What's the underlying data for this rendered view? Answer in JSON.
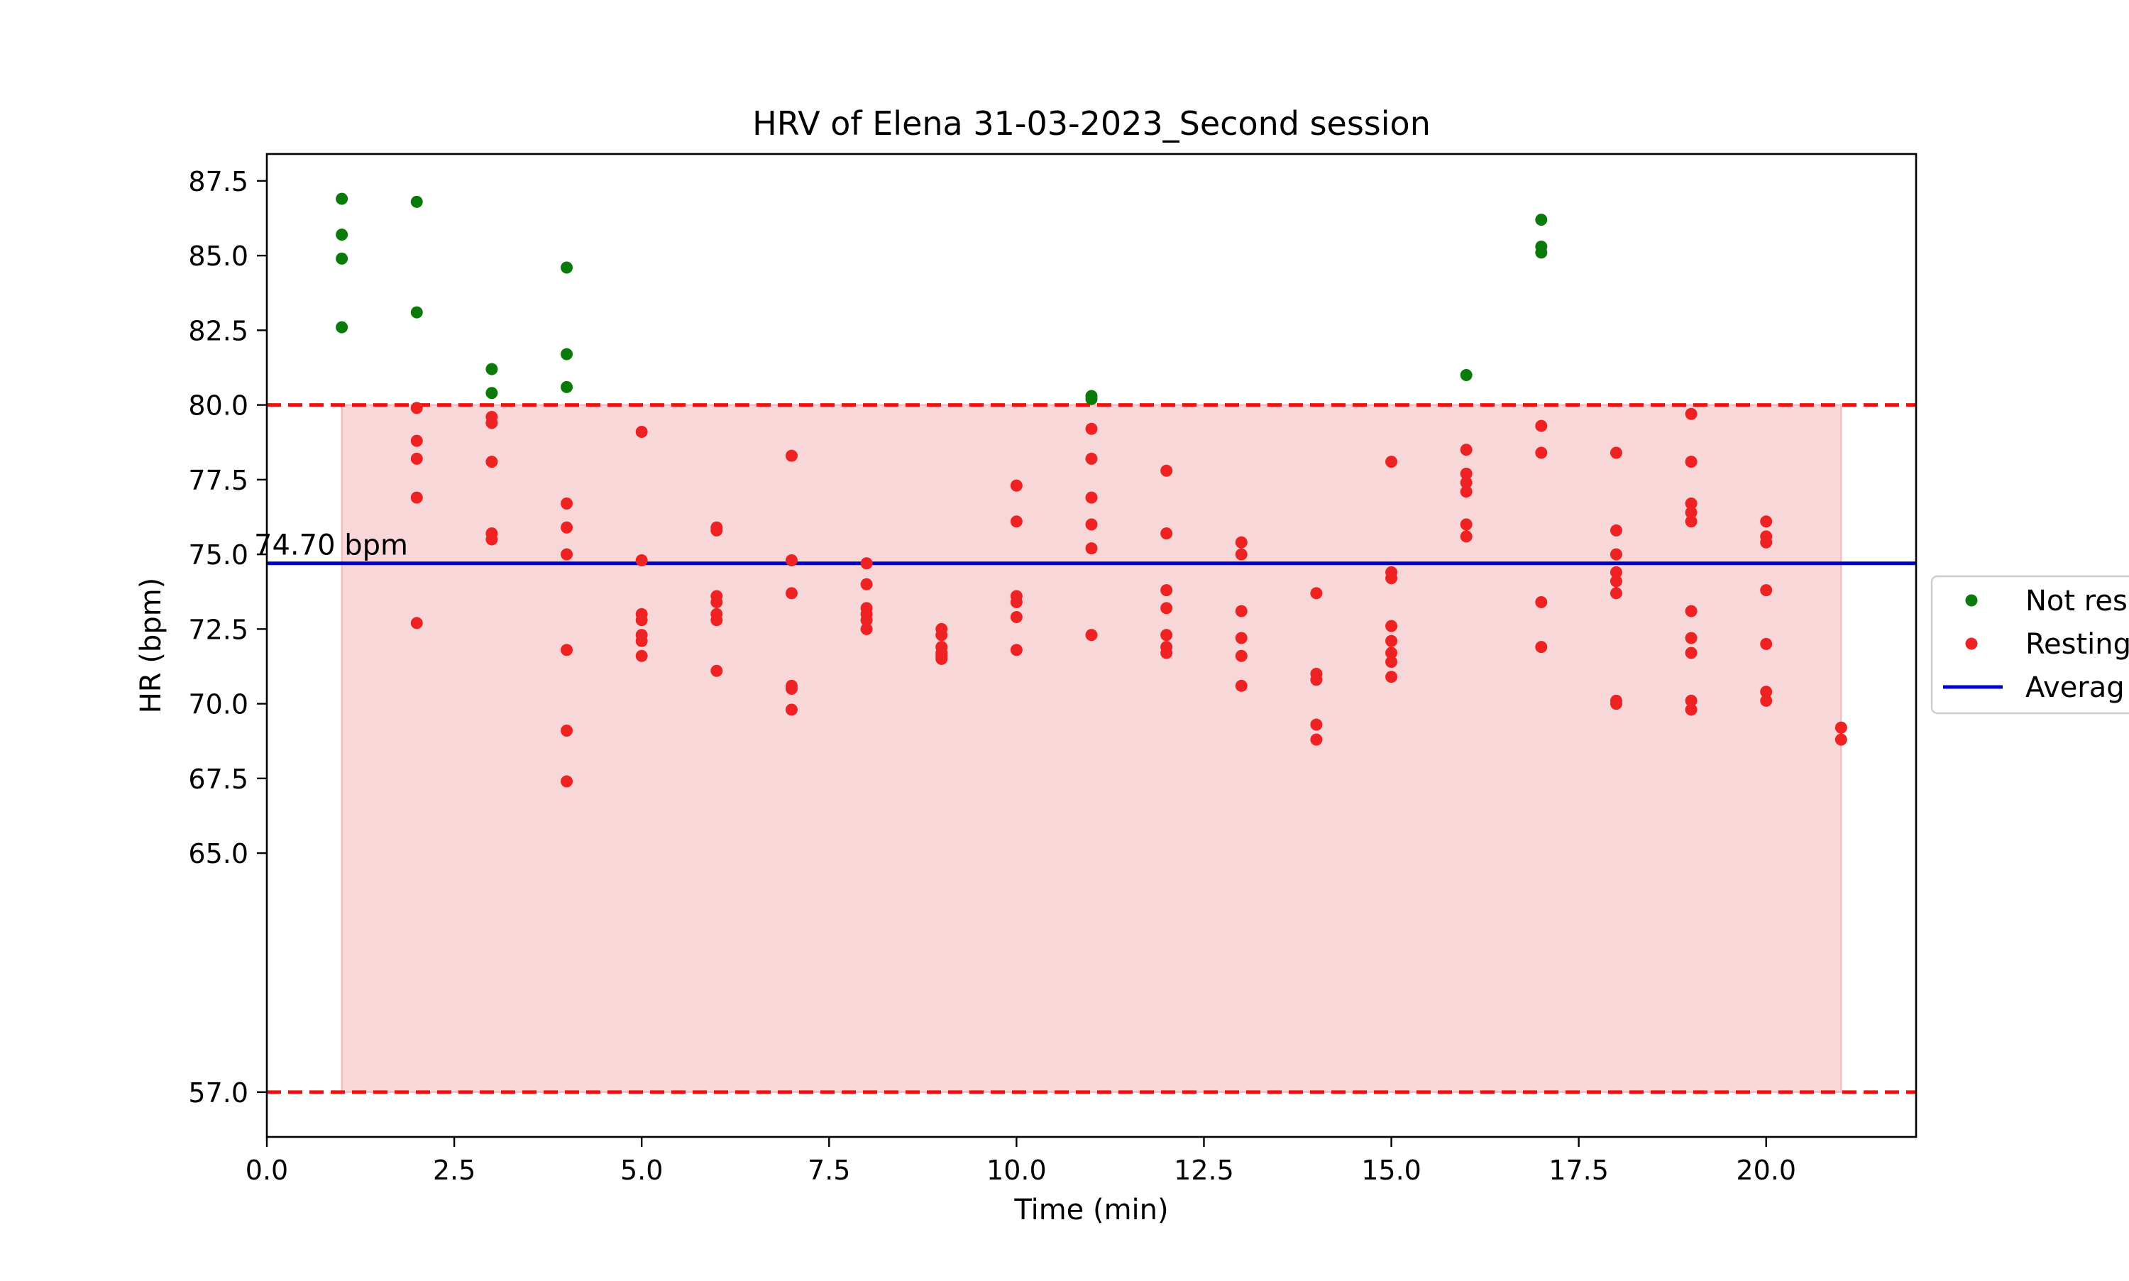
{
  "chart_data": {
    "type": "scatter",
    "title": "HRV of Elena 31-03-2023_Second session",
    "xlabel": "Time (min)",
    "ylabel": "HR (bpm)",
    "xlim": [
      0,
      22
    ],
    "ylim": [
      55.5,
      88.4
    ],
    "xticks": [
      0.0,
      2.5,
      5.0,
      7.5,
      10.0,
      12.5,
      15.0,
      17.5,
      20.0
    ],
    "xtick_labels": [
      "0.0",
      "2.5",
      "5.0",
      "7.5",
      "10.0",
      "12.5",
      "15.0",
      "17.5",
      "20.0"
    ],
    "yticks": [
      57.0,
      65.0,
      67.5,
      70.0,
      72.5,
      75.0,
      77.5,
      80.0,
      82.5,
      85.0,
      87.5
    ],
    "ytick_labels": [
      "57.0",
      "65.0",
      "67.5",
      "70.0",
      "72.5",
      "75.0",
      "77.5",
      "80.0",
      "82.5",
      "85.0",
      "87.5"
    ],
    "grid": false,
    "legend_placement": "right",
    "average": {
      "value": 74.7,
      "label": "74.70 bpm",
      "color": "#0000cc"
    },
    "resting_band": {
      "lower": 57.0,
      "upper": 80.0,
      "x_range": [
        1,
        21
      ],
      "line_color": "#ee1111",
      "fill_color": "#f8d7d8"
    },
    "series": [
      {
        "name": "Not resting",
        "legend_label": "Not res",
        "color": "#0a7a0a",
        "points": [
          [
            1,
            86.9
          ],
          [
            1,
            85.7
          ],
          [
            1,
            84.9
          ],
          [
            1,
            82.6
          ],
          [
            2,
            86.8
          ],
          [
            2,
            83.1
          ],
          [
            3,
            81.2
          ],
          [
            3,
            80.4
          ],
          [
            4,
            84.6
          ],
          [
            4,
            81.7
          ],
          [
            4,
            80.6
          ],
          [
            11,
            80.3
          ],
          [
            11,
            80.2
          ],
          [
            16,
            81.0
          ],
          [
            17,
            86.2
          ],
          [
            17,
            85.3
          ],
          [
            17,
            85.1
          ]
        ]
      },
      {
        "name": "Resting",
        "legend_label": "Resting",
        "color": "#ee2222",
        "points": [
          [
            2,
            79.9
          ],
          [
            2,
            78.8
          ],
          [
            2,
            78.2
          ],
          [
            2,
            76.9
          ],
          [
            2,
            72.7
          ],
          [
            3,
            79.6
          ],
          [
            3,
            79.4
          ],
          [
            3,
            78.1
          ],
          [
            3,
            75.7
          ],
          [
            3,
            75.5
          ],
          [
            4,
            76.7
          ],
          [
            4,
            75.9
          ],
          [
            4,
            75.0
          ],
          [
            4,
            71.8
          ],
          [
            4,
            69.1
          ],
          [
            4,
            67.4
          ],
          [
            5,
            79.1
          ],
          [
            5,
            74.8
          ],
          [
            5,
            73.0
          ],
          [
            5,
            72.8
          ],
          [
            5,
            72.3
          ],
          [
            5,
            72.1
          ],
          [
            5,
            71.6
          ],
          [
            6,
            75.9
          ],
          [
            6,
            75.8
          ],
          [
            6,
            73.6
          ],
          [
            6,
            73.4
          ],
          [
            6,
            73.0
          ],
          [
            6,
            72.8
          ],
          [
            6,
            71.1
          ],
          [
            7,
            78.3
          ],
          [
            7,
            74.8
          ],
          [
            7,
            73.7
          ],
          [
            7,
            70.6
          ],
          [
            7,
            70.5
          ],
          [
            7,
            69.8
          ],
          [
            8,
            74.7
          ],
          [
            8,
            74.0
          ],
          [
            8,
            73.2
          ],
          [
            8,
            73.0
          ],
          [
            8,
            72.8
          ],
          [
            8,
            72.5
          ],
          [
            9,
            72.5
          ],
          [
            9,
            72.3
          ],
          [
            9,
            71.9
          ],
          [
            9,
            71.7
          ],
          [
            9,
            71.6
          ],
          [
            9,
            71.5
          ],
          [
            10,
            77.3
          ],
          [
            10,
            76.1
          ],
          [
            10,
            73.6
          ],
          [
            10,
            73.4
          ],
          [
            10,
            72.9
          ],
          [
            10,
            71.8
          ],
          [
            11,
            79.2
          ],
          [
            11,
            78.2
          ],
          [
            11,
            76.9
          ],
          [
            11,
            76.0
          ],
          [
            11,
            75.2
          ],
          [
            11,
            72.3
          ],
          [
            12,
            77.8
          ],
          [
            12,
            75.7
          ],
          [
            12,
            73.8
          ],
          [
            12,
            73.2
          ],
          [
            12,
            72.3
          ],
          [
            12,
            71.9
          ],
          [
            12,
            71.7
          ],
          [
            13,
            75.4
          ],
          [
            13,
            75.0
          ],
          [
            13,
            73.1
          ],
          [
            13,
            72.2
          ],
          [
            13,
            71.6
          ],
          [
            13,
            70.6
          ],
          [
            14,
            73.7
          ],
          [
            14,
            71.0
          ],
          [
            14,
            70.8
          ],
          [
            14,
            69.3
          ],
          [
            14,
            68.8
          ],
          [
            15,
            78.1
          ],
          [
            15,
            74.4
          ],
          [
            15,
            74.2
          ],
          [
            15,
            72.6
          ],
          [
            15,
            72.1
          ],
          [
            15,
            71.7
          ],
          [
            15,
            71.4
          ],
          [
            15,
            70.9
          ],
          [
            16,
            78.5
          ],
          [
            16,
            77.7
          ],
          [
            16,
            77.4
          ],
          [
            16,
            77.1
          ],
          [
            16,
            76.0
          ],
          [
            16,
            75.6
          ],
          [
            17,
            79.3
          ],
          [
            17,
            78.4
          ],
          [
            17,
            73.4
          ],
          [
            17,
            71.9
          ],
          [
            18,
            78.4
          ],
          [
            18,
            75.8
          ],
          [
            18,
            75.0
          ],
          [
            18,
            74.4
          ],
          [
            18,
            74.1
          ],
          [
            18,
            73.7
          ],
          [
            18,
            70.1
          ],
          [
            18,
            70.0
          ],
          [
            19,
            79.7
          ],
          [
            19,
            78.1
          ],
          [
            19,
            76.7
          ],
          [
            19,
            76.4
          ],
          [
            19,
            76.1
          ],
          [
            19,
            73.1
          ],
          [
            19,
            72.2
          ],
          [
            19,
            71.7
          ],
          [
            19,
            70.1
          ],
          [
            19,
            69.8
          ],
          [
            20,
            76.1
          ],
          [
            20,
            75.6
          ],
          [
            20,
            75.4
          ],
          [
            20,
            73.8
          ],
          [
            20,
            72.0
          ],
          [
            20,
            70.4
          ],
          [
            20,
            70.1
          ],
          [
            21,
            69.2
          ],
          [
            21,
            68.8
          ]
        ]
      }
    ],
    "legend": [
      {
        "label": "Not res",
        "kind": "marker",
        "color": "#0a7a0a"
      },
      {
        "label": "Resting",
        "kind": "marker",
        "color": "#ee2222"
      },
      {
        "label": "Averag",
        "kind": "line",
        "color": "#0000cc"
      }
    ]
  }
}
